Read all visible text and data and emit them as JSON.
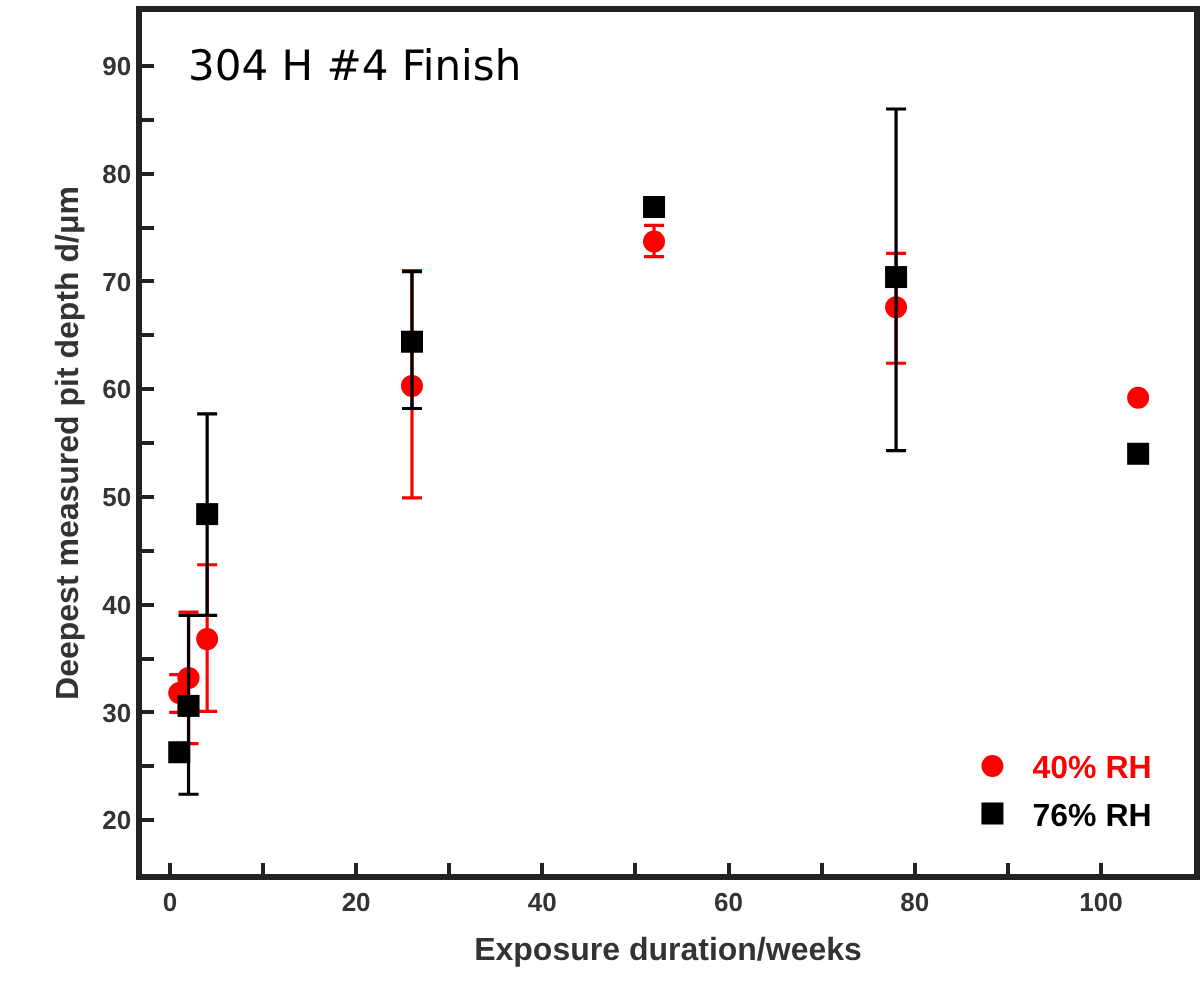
{
  "chart_data": {
    "type": "scatter",
    "xlabel": "Exposure duration/weeks",
    "ylabel": "Deepest measured pit depth d/μm",
    "annotations": [
      "304 H #4 Finish"
    ],
    "xlim": [
      -3,
      110
    ],
    "xticks": [
      0,
      {
        "value": 10,
        "label": null
      },
      20,
      {
        "value": 30,
        "label": null
      },
      40,
      {
        "value": 50,
        "label": null
      },
      60,
      {
        "value": 70,
        "label": null
      },
      80,
      {
        "value": 90,
        "label": null
      },
      100
    ],
    "ylim": [
      15,
      95
    ],
    "yticks": [
      20,
      {
        "value": 25,
        "label": null
      },
      30,
      {
        "value": 35,
        "label": null
      },
      40,
      {
        "value": 45,
        "label": null
      },
      50,
      {
        "value": 55,
        "label": null
      },
      60,
      {
        "value": 65,
        "label": null
      },
      70,
      {
        "value": 75,
        "label": null
      },
      80,
      {
        "value": 85,
        "label": null
      },
      90
    ],
    "grid": false,
    "legend": "bottom right",
    "series": [
      {
        "name": "40% RH",
        "color": "#ff0000",
        "marker": "circle",
        "x": [
          1,
          2,
          4,
          26,
          52,
          78,
          104
        ],
        "values": [
          31.8,
          33.2,
          36.8,
          60.3,
          73.7,
          67.6,
          59.2
        ],
        "errors": [
          [
            30,
            33.5
          ],
          [
            27.1,
            39.3
          ],
          [
            30.1,
            43.7
          ],
          [
            49.9,
            71
          ],
          [
            72.3,
            75.2
          ],
          [
            62.4,
            72.6
          ],
          null
        ]
      },
      {
        "name": "76% RH",
        "color": "#000000",
        "marker": "square",
        "x": [
          1,
          2,
          4,
          26,
          52,
          78,
          104
        ],
        "values": [
          26.3,
          30.6,
          48.4,
          64.4,
          76.9,
          70.4,
          54
        ],
        "errors": [
          null,
          [
            22.4,
            39
          ],
          [
            39,
            57.7
          ],
          [
            58.2,
            70.9
          ],
          null,
          [
            54.3,
            86
          ],
          null
        ]
      }
    ]
  }
}
